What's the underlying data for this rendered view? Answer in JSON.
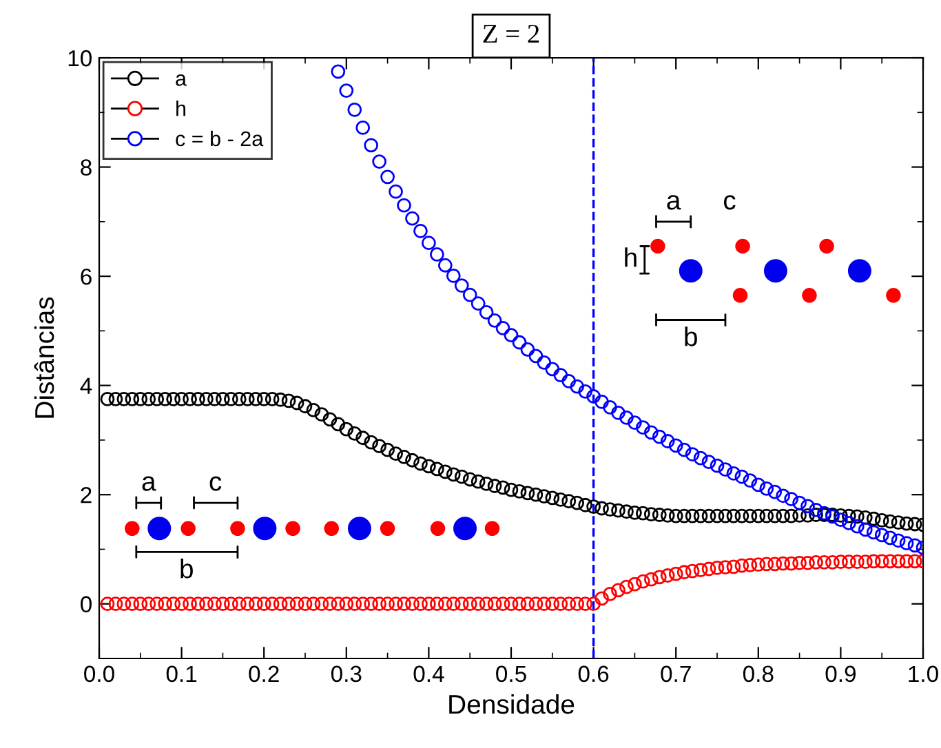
{
  "chart_data": {
    "type": "scatter",
    "title": "Z = 2",
    "xlabel": "Densidade",
    "ylabel": "Distâncias",
    "x": [
      0.01,
      0.02,
      0.03,
      0.04,
      0.05,
      0.06,
      0.07,
      0.08,
      0.09,
      0.1,
      0.11,
      0.12,
      0.13,
      0.14,
      0.15,
      0.16,
      0.17,
      0.18,
      0.19,
      0.2,
      0.21,
      0.22,
      0.23,
      0.24,
      0.25,
      0.26,
      0.27,
      0.28,
      0.29,
      0.3,
      0.31,
      0.32,
      0.33,
      0.34,
      0.35,
      0.36,
      0.37,
      0.38,
      0.39,
      0.4,
      0.41,
      0.42,
      0.43,
      0.44,
      0.45,
      0.46,
      0.47,
      0.48,
      0.49,
      0.5,
      0.51,
      0.52,
      0.53,
      0.54,
      0.55,
      0.56,
      0.57,
      0.58,
      0.59,
      0.6,
      0.61,
      0.62,
      0.63,
      0.64,
      0.65,
      0.66,
      0.67,
      0.68,
      0.69,
      0.7,
      0.71,
      0.72,
      0.73,
      0.74,
      0.75,
      0.76,
      0.77,
      0.78,
      0.79,
      0.8,
      0.81,
      0.82,
      0.83,
      0.84,
      0.85,
      0.86,
      0.87,
      0.88,
      0.89,
      0.9,
      0.91,
      0.92,
      0.93,
      0.94,
      0.95,
      0.96,
      0.97,
      0.98,
      0.99,
      1.0
    ],
    "series": [
      {
        "name": "a",
        "color": "#000000",
        "values": [
          3.75,
          3.75,
          3.75,
          3.75,
          3.75,
          3.75,
          3.75,
          3.75,
          3.75,
          3.75,
          3.75,
          3.75,
          3.75,
          3.75,
          3.75,
          3.75,
          3.75,
          3.75,
          3.75,
          3.75,
          3.75,
          3.74,
          3.72,
          3.68,
          3.62,
          3.55,
          3.47,
          3.38,
          3.29,
          3.2,
          3.12,
          3.04,
          2.96,
          2.89,
          2.82,
          2.75,
          2.69,
          2.63,
          2.57,
          2.52,
          2.47,
          2.42,
          2.37,
          2.33,
          2.28,
          2.24,
          2.2,
          2.16,
          2.13,
          2.09,
          2.06,
          2.03,
          2.0,
          1.97,
          1.94,
          1.91,
          1.88,
          1.85,
          1.81,
          1.78,
          1.75,
          1.73,
          1.71,
          1.69,
          1.67,
          1.66,
          1.64,
          1.63,
          1.62,
          1.61,
          1.61,
          1.61,
          1.61,
          1.61,
          1.61,
          1.61,
          1.61,
          1.61,
          1.61,
          1.61,
          1.61,
          1.61,
          1.61,
          1.61,
          1.62,
          1.62,
          1.63,
          1.63,
          1.63,
          1.62,
          1.61,
          1.6,
          1.58,
          1.56,
          1.53,
          1.51,
          1.49,
          1.47,
          1.46,
          1.45
        ]
      },
      {
        "name": "h",
        "color": "#ff0000",
        "values": [
          0,
          0,
          0,
          0,
          0,
          0,
          0,
          0,
          0,
          0,
          0,
          0,
          0,
          0,
          0,
          0,
          0,
          0,
          0,
          0,
          0,
          0,
          0,
          0,
          0,
          0,
          0,
          0,
          0,
          0,
          0,
          0,
          0,
          0,
          0,
          0,
          0,
          0,
          0,
          0,
          0,
          0,
          0,
          0,
          0,
          0,
          0,
          0,
          0,
          0,
          0,
          0,
          0,
          0,
          0,
          0,
          0,
          0,
          0,
          0,
          0.1,
          0.18,
          0.25,
          0.31,
          0.36,
          0.41,
          0.45,
          0.49,
          0.52,
          0.55,
          0.58,
          0.6,
          0.62,
          0.64,
          0.66,
          0.67,
          0.68,
          0.7,
          0.71,
          0.72,
          0.73,
          0.73,
          0.74,
          0.74,
          0.75,
          0.75,
          0.76,
          0.76,
          0.76,
          0.77,
          0.77,
          0.77,
          0.77,
          0.78,
          0.78,
          0.78,
          0.78,
          0.78,
          0.78,
          0.78
        ]
      },
      {
        "name": "c = b - 2a",
        "color": "#0000ff",
        "values": [
          null,
          null,
          null,
          null,
          null,
          null,
          null,
          null,
          null,
          null,
          null,
          null,
          null,
          null,
          null,
          null,
          null,
          null,
          null,
          null,
          null,
          null,
          null,
          null,
          null,
          null,
          null,
          null,
          9.75,
          9.4,
          9.05,
          8.72,
          8.4,
          8.1,
          7.82,
          7.55,
          7.3,
          7.06,
          6.83,
          6.61,
          6.4,
          6.2,
          6.01,
          5.83,
          5.66,
          5.5,
          5.34,
          5.19,
          5.05,
          4.92,
          4.79,
          4.66,
          4.54,
          4.42,
          4.3,
          4.19,
          4.08,
          3.98,
          3.89,
          3.8,
          3.7,
          3.6,
          3.5,
          3.41,
          3.32,
          3.23,
          3.14,
          3.06,
          2.98,
          2.9,
          2.82,
          2.74,
          2.67,
          2.6,
          2.53,
          2.46,
          2.39,
          2.33,
          2.26,
          2.18,
          2.11,
          2.05,
          1.98,
          1.92,
          1.85,
          1.79,
          1.72,
          1.66,
          1.6,
          1.54,
          1.48,
          1.42,
          1.36,
          1.31,
          1.26,
          1.21,
          1.16,
          1.11,
          1.07,
          1.03
        ]
      }
    ],
    "marker": "circle",
    "legend": "top left",
    "xlim": [
      0.0,
      1.0
    ],
    "xticks": [
      {
        "value": 0,
        "label": "0.0"
      },
      0.1,
      0.2,
      0.3,
      0.4,
      0.5,
      0.6,
      0.7,
      0.8,
      0.9,
      {
        "value": 1,
        "label": "1.0"
      }
    ],
    "ylim": [
      -1,
      10
    ],
    "yticks": [
      0,
      2,
      4,
      6,
      8,
      10
    ],
    "ref_lines": [
      {
        "axis": "x",
        "value": 0.6,
        "color": "#0000ff",
        "line_style": "dashed"
      }
    ],
    "annotations": [
      "a",
      "c",
      "b",
      "a",
      "c",
      "h",
      "b"
    ]
  }
}
